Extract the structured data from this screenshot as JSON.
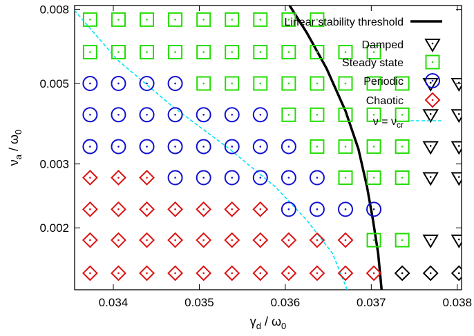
{
  "chart_data": {
    "type": "scatter",
    "xlabel": {
      "main": "γ",
      "sub": "d",
      "rest": " / ω",
      "sub2": "0"
    },
    "ylabel": {
      "main": "ν",
      "sub": "a",
      "rest": " / ω",
      "sub2": "0"
    },
    "xlim": [
      0.03355,
      0.03805
    ],
    "ylim": [
      0.00135,
      0.0082
    ],
    "y_scale": "log",
    "x_ticks": [
      "0.034",
      "0.035",
      "0.036",
      "0.037",
      "0.038"
    ],
    "y_ticks": [
      "0.002",
      "0.003",
      "0.005",
      "0.008"
    ],
    "grid": false,
    "legend_position": "top-right",
    "legend": [
      {
        "label": "Linear stability threshold",
        "kind": "line"
      },
      {
        "label": "Damped",
        "kind": "marker"
      },
      {
        "label": "Steady state",
        "kind": "marker"
      },
      {
        "label": "Periodic",
        "kind": "marker"
      },
      {
        "label": "Chaotic",
        "kind": "marker"
      },
      {
        "label": "ν = ν",
        "sub": "cr",
        "kind": "line"
      }
    ],
    "colors": {
      "damped": "#000000",
      "steady": "#22dd00",
      "periodic": "#1010d0",
      "chaotic": "#dd1010",
      "threshold": "#000000",
      "critical": "#00e5f5"
    },
    "x_grid": [
      0.03373,
      0.03406,
      0.03439,
      0.03472,
      0.03505,
      0.03538,
      0.03571,
      0.03604,
      0.03637,
      0.0367,
      0.03703,
      0.03736,
      0.03769,
      0.03802
    ],
    "y_grid": [
      0.0015,
      0.00185,
      0.00225,
      0.00275,
      0.00335,
      0.0041,
      0.005,
      0.0061,
      0.0075
    ],
    "rows": [
      {
        "y": 0.0015,
        "classes": [
          "C",
          "C",
          "C",
          "C",
          "C",
          "C",
          "C",
          "C",
          "C",
          "C",
          "C",
          "X",
          "X",
          "X"
        ]
      },
      {
        "y": 0.00185,
        "classes": [
          "C",
          "C",
          "C",
          "C",
          "C",
          "C",
          "C",
          "C",
          "C",
          "C",
          "S",
          "S",
          "D",
          "D"
        ]
      },
      {
        "y": 0.00225,
        "classes": [
          "C",
          "C",
          "C",
          "C",
          "C",
          "C",
          "C",
          "P",
          "P",
          "P",
          "P",
          "",
          "",
          ""
        ]
      },
      {
        "y": 0.00275,
        "classes": [
          "C",
          "C",
          "C",
          "P",
          "P",
          "P",
          "P",
          "P",
          "P",
          "S",
          "S",
          "S",
          "D",
          "D"
        ]
      },
      {
        "y": 0.00335,
        "classes": [
          "P",
          "P",
          "P",
          "P",
          "P",
          "P",
          "P",
          "P",
          "S",
          "S",
          "S",
          "S",
          "D",
          "D"
        ]
      },
      {
        "y": 0.0041,
        "classes": [
          "P",
          "P",
          "P",
          "P",
          "P",
          "P",
          "P",
          "S",
          "S",
          "S",
          "S",
          "S",
          "D",
          "D"
        ]
      },
      {
        "y": 0.005,
        "classes": [
          "P",
          "P",
          "P",
          "P",
          "S",
          "S",
          "S",
          "S",
          "S",
          "S",
          "S",
          "S",
          "D",
          "D"
        ]
      },
      {
        "y": 0.0061,
        "classes": [
          "S",
          "S",
          "S",
          "S",
          "S",
          "S",
          "S",
          "S",
          "S",
          "S",
          "S",
          "",
          "",
          ""
        ]
      },
      {
        "y": 0.0075,
        "classes": [
          "S",
          "S",
          "S",
          "S",
          "S",
          "S",
          "S",
          "S",
          "S",
          "",
          "",
          "",
          "",
          ""
        ]
      }
    ],
    "threshold_curve": [
      {
        "x": 0.03712,
        "y": 0.00135
      },
      {
        "x": 0.03708,
        "y": 0.0017
      },
      {
        "x": 0.03702,
        "y": 0.0021
      },
      {
        "x": 0.03695,
        "y": 0.0026
      },
      {
        "x": 0.03685,
        "y": 0.0033
      },
      {
        "x": 0.0367,
        "y": 0.0042
      },
      {
        "x": 0.03648,
        "y": 0.0055
      },
      {
        "x": 0.03625,
        "y": 0.0069
      },
      {
        "x": 0.03605,
        "y": 0.0082
      }
    ],
    "critical_curve": [
      {
        "x": 0.03672,
        "y": 0.00135
      },
      {
        "x": 0.03655,
        "y": 0.0017
      },
      {
        "x": 0.03625,
        "y": 0.0021
      },
      {
        "x": 0.03588,
        "y": 0.0026
      },
      {
        "x": 0.03535,
        "y": 0.0033
      },
      {
        "x": 0.0347,
        "y": 0.0043
      },
      {
        "x": 0.03405,
        "y": 0.0058
      },
      {
        "x": 0.0335,
        "y": 0.0082
      }
    ]
  }
}
